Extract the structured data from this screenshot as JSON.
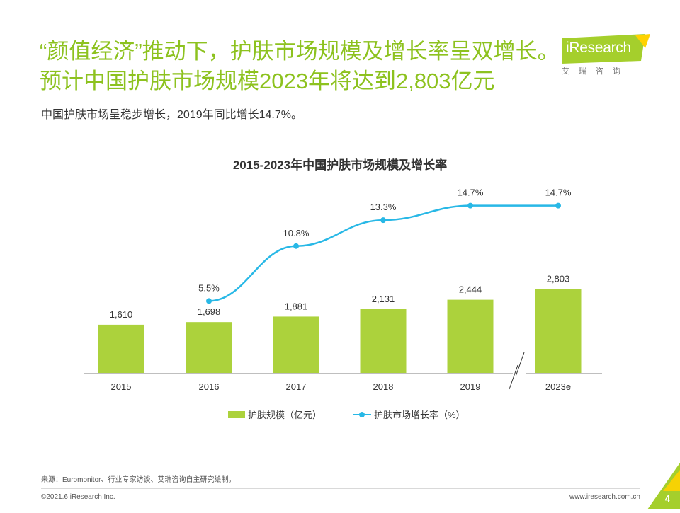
{
  "header": {
    "title": "“颜值经济”推动下，护肤市场规模及增长率呈双增长。预计中国护肤市场规模2023年将达到2,803亿元",
    "subtitle": "中国护肤市场呈稳步增长，2019年同比增长14.7%。"
  },
  "logo": {
    "name": "iResearch",
    "sub": "艾瑞咨询",
    "colors": {
      "green": "#a5cf2c",
      "yellow": "#ffd200"
    }
  },
  "colors": {
    "bar": "#acd23c",
    "line": "#28b8e6",
    "title": "#8dc21f"
  },
  "chart_data": {
    "type": "bar",
    "title": "2015-2023年中国护肤市场规模及增长率",
    "categories": [
      "2015",
      "2016",
      "2017",
      "2018",
      "2019",
      "2023e"
    ],
    "series": [
      {
        "name": "护肤规模（亿元）",
        "type": "bar",
        "values": [
          1610,
          1698,
          1881,
          2131,
          2444,
          2803
        ],
        "labels": [
          "1,610",
          "1,698",
          "1,881",
          "2,131",
          "2,444",
          "2,803"
        ]
      },
      {
        "name": "护肤市场增长率（%）",
        "type": "line",
        "values": [
          null,
          5.5,
          10.8,
          13.3,
          14.7,
          14.7
        ],
        "labels": [
          "",
          "5.5%",
          "10.8%",
          "13.3%",
          "14.7%",
          "14.7%"
        ]
      }
    ],
    "axis_break_between": [
      "2019",
      "2023e"
    ],
    "legend_position": "bottom",
    "grid": false
  },
  "footer": {
    "source": "来源：Euromonitor、行业专家访谈、艾瑞咨询自主研究绘制。",
    "copyright": "©2021.6 iResearch Inc.",
    "website": "www.iresearch.com.cn",
    "page": "4"
  }
}
